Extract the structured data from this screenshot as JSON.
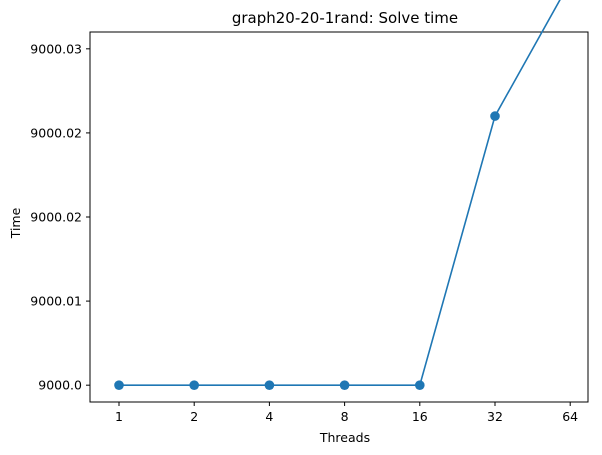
{
  "chart_data": {
    "type": "line",
    "title": "graph20-20-1rand: Solve time",
    "xlabel": "Threads",
    "ylabel": "Time",
    "categories": [
      "1",
      "2",
      "4",
      "8",
      "16",
      "32",
      "64"
    ],
    "series": [
      {
        "values": [
          9000.0,
          9000.0,
          9000.0,
          9000.0,
          9000.0,
          9000.024,
          9000.036
        ],
        "color": "#1f77b4",
        "marker": "circle"
      }
    ],
    "yticks": [
      9000.0,
      9000.0075,
      9000.015,
      9000.0225,
      9000.03
    ],
    "ytick_labels": [
      "9000.0",
      "9000.01",
      "9000.02",
      "9000.02",
      "9000.03"
    ],
    "ylim": [
      8999.9985,
      9000.0315
    ],
    "grid": false,
    "legend": "none"
  }
}
